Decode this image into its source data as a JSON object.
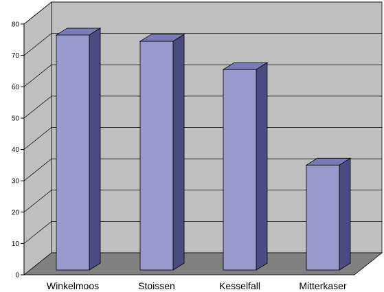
{
  "chart_data": {
    "type": "bar",
    "categories": [
      "Winkelmoos",
      "Stoissen",
      "Kesselfall",
      "Mitterkaser"
    ],
    "values": [
      76.5,
      74.5,
      65.5,
      35
    ],
    "title": "",
    "xlabel": "",
    "ylabel": "",
    "ylim": [
      0,
      80
    ],
    "yticks": [
      0,
      10,
      20,
      30,
      40,
      50,
      60,
      70,
      80
    ],
    "ytick_labels": [
      "0",
      "10",
      "20",
      "30",
      "40",
      "50",
      "60",
      "70",
      "80"
    ],
    "grid": true,
    "legend": "none",
    "style": "3d-column"
  },
  "colors": {
    "bar_front": "#9999cc",
    "bar_side": "#4b4b82",
    "bar_top": "#7b7bb8",
    "wall": "#c0c0c0",
    "floor": "#808080",
    "gridline": "#000000"
  }
}
